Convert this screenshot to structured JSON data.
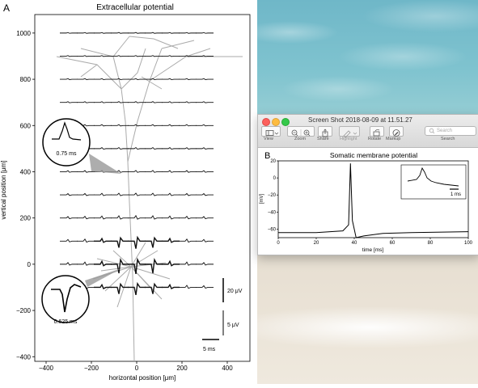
{
  "panel_a": {
    "label": "A",
    "title": "Extracellular potential",
    "xlabel": "horizontal position [μm]",
    "ylabel": "vertical position [μm]",
    "xticks": [
      "−400",
      "−200",
      "0",
      "200",
      "400"
    ],
    "yticks": [
      "1000",
      "800",
      "600",
      "400",
      "200",
      "0",
      "−200",
      "−400"
    ],
    "inset_top": "0.75 ms",
    "inset_bottom": "0.625 ms",
    "scale_20": "20 μV",
    "scale_5uv": "5 μV",
    "scale_5ms": "5 ms"
  },
  "window": {
    "title": "Screen Shot 2018-08-09 at 11.51.27",
    "toolbar": [
      {
        "label": "View",
        "icon": "sidebar-icon"
      },
      {
        "label": "Zoom",
        "icon": "zoom-icon"
      },
      {
        "label": "Share",
        "icon": "share-icon"
      },
      {
        "label": "Highlight",
        "icon": "highlight-icon"
      },
      {
        "label": "Rotate",
        "icon": "rotate-icon"
      },
      {
        "label": "Markup",
        "icon": "markup-icon"
      },
      {
        "label": "Search",
        "icon": "search-icon"
      }
    ],
    "search_placeholder": "Search"
  },
  "panel_b": {
    "label": "B",
    "title": "Somatic membrane potential",
    "xlabel": "time [ms]",
    "ylabel": "[mV]",
    "xticks": [
      "0",
      "20",
      "40",
      "60",
      "80",
      "100"
    ],
    "yticks": [
      "20",
      "0",
      "−20",
      "−40",
      "−60"
    ],
    "inset_scale": "1 ms"
  },
  "chart_data": [
    {
      "type": "line",
      "title": "Somatic membrane potential",
      "xlabel": "time [ms]",
      "ylabel": "[mV]",
      "xlim": [
        0,
        100
      ],
      "ylim": [
        -70,
        20
      ],
      "series": [
        {
          "x": [
            0,
            20,
            34,
            37,
            38,
            39,
            41,
            45,
            55,
            70,
            100
          ],
          "y": [
            -64,
            -64,
            -62,
            -55,
            17,
            -50,
            -70,
            -68,
            -65,
            -64,
            -63
          ]
        }
      ]
    },
    {
      "type": "line",
      "title": "Extracellular potential",
      "xlabel": "horizontal position [μm]",
      "ylabel": "vertical position [μm]",
      "xlim": [
        -450,
        500
      ],
      "ylim": [
        -420,
        1080
      ]
    }
  ]
}
